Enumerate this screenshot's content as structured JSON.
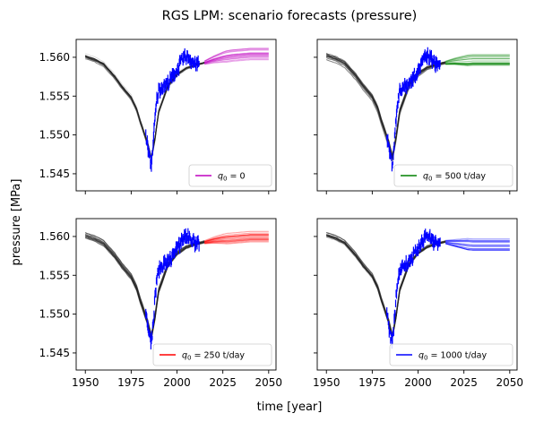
{
  "figure": {
    "title": "RGS LPM: scenario forecasts (pressure)",
    "xlabel": "time [year]",
    "ylabel": "pressure [MPa]"
  },
  "chart_data": [
    {
      "type": "line",
      "legend": {
        "label_prefix": "q",
        "label_subscript": "0",
        "label_value": " = 0",
        "location": "lower-right",
        "color": "#bf00bf"
      },
      "forecast_color": "#bf00bf",
      "xlim": [
        1945,
        2054
      ],
      "ylim": [
        1.5428,
        1.5623
      ],
      "x_ticks": [
        "1950",
        "1975",
        "2000",
        "2025",
        "2050"
      ],
      "y_ticks": [
        "1.545",
        "1.550",
        "1.555",
        "1.560"
      ],
      "forecast_center": {
        "x": [
          2015,
          2020,
          2025,
          2030,
          2035,
          2040,
          2045,
          2050
        ],
        "y": [
          1.5593,
          1.5597,
          1.56,
          1.5602,
          1.5603,
          1.5604,
          1.5604,
          1.5604
        ]
      },
      "forecast_spread": 0.0008
    },
    {
      "type": "line",
      "legend": {
        "label_prefix": "q",
        "label_subscript": "0",
        "label_value": " = 500 t/day",
        "location": "lower-right",
        "color": "#008000"
      },
      "forecast_color": "#008000",
      "xlim": [
        1945,
        2054
      ],
      "ylim": [
        1.5428,
        1.5623
      ],
      "x_ticks": [
        "1950",
        "1975",
        "2000",
        "2025",
        "2050"
      ],
      "y_ticks": [
        "1.545",
        "1.550",
        "1.555",
        "1.560"
      ],
      "forecast_center": {
        "x": [
          2015,
          2020,
          2025,
          2030,
          2035,
          2040,
          2045,
          2050
        ],
        "y": [
          1.5593,
          1.5595,
          1.5596,
          1.5597,
          1.5597,
          1.5597,
          1.5597,
          1.5597
        ]
      },
      "forecast_spread": 0.0008
    },
    {
      "type": "line",
      "legend": {
        "label_prefix": "q",
        "label_subscript": "0",
        "label_value": " = 250 t/day",
        "location": "lower-right",
        "color": "#ff0000"
      },
      "forecast_color": "#ff0000",
      "xlim": [
        1945,
        2054
      ],
      "ylim": [
        1.5428,
        1.5623
      ],
      "x_ticks": [
        "1950",
        "1975",
        "2000",
        "2025",
        "2050"
      ],
      "y_ticks": [
        "1.545",
        "1.550",
        "1.555",
        "1.560"
      ],
      "forecast_center": {
        "x": [
          2015,
          2020,
          2025,
          2030,
          2035,
          2040,
          2045,
          2050
        ],
        "y": [
          1.5593,
          1.5596,
          1.5598,
          1.5599,
          1.56,
          1.5601,
          1.5601,
          1.5601
        ]
      },
      "forecast_spread": 0.0008
    },
    {
      "type": "line",
      "legend": {
        "label_prefix": "q",
        "label_subscript": "0",
        "label_value": " = 1000 t/day",
        "location": "lower-right",
        "color": "#0000ff"
      },
      "forecast_color": "#0000ff",
      "xlim": [
        1945,
        2054
      ],
      "ylim": [
        1.5428,
        1.5623
      ],
      "x_ticks": [
        "1950",
        "1975",
        "2000",
        "2025",
        "2050"
      ],
      "y_ticks": [
        "1.545",
        "1.550",
        "1.555",
        "1.560"
      ],
      "forecast_center": {
        "x": [
          2015,
          2020,
          2025,
          2030,
          2035,
          2040,
          2045,
          2050
        ],
        "y": [
          1.5593,
          1.5592,
          1.5591,
          1.559,
          1.559,
          1.559,
          1.559,
          1.559
        ]
      },
      "forecast_spread": 0.0008
    }
  ],
  "shared_series": {
    "calibration_color": "#000000",
    "observation_color": "#0000ff",
    "calibration": {
      "x": [
        1950,
        1955,
        1960,
        1963,
        1966,
        1970,
        1975,
        1978,
        1980,
        1982,
        1984,
        1986,
        1988,
        1990,
        1995,
        2000,
        2005,
        2010,
        2015
      ],
      "y": [
        1.5601,
        1.5597,
        1.5591,
        1.5583,
        1.5575,
        1.5562,
        1.5548,
        1.5533,
        1.5517,
        1.5503,
        1.5489,
        1.547,
        1.5496,
        1.553,
        1.5563,
        1.5578,
        1.5586,
        1.559,
        1.5593
      ]
    },
    "calibration_spread": 0.0005,
    "observations": {
      "x": [
        1983,
        1984,
        1985,
        1986,
        1987,
        1988,
        1989,
        1990,
        1992,
        1994,
        1996,
        1998,
        2000,
        2002,
        2004,
        2006,
        2008,
        2010,
        2012
      ],
      "y": [
        1.5499,
        1.5485,
        1.5472,
        1.5462,
        1.5488,
        1.5521,
        1.5545,
        1.5557,
        1.5562,
        1.5565,
        1.5569,
        1.5577,
        1.5583,
        1.5593,
        1.56,
        1.5601,
        1.5595,
        1.5591,
        1.5592
      ]
    },
    "observation_error": 0.0012
  }
}
